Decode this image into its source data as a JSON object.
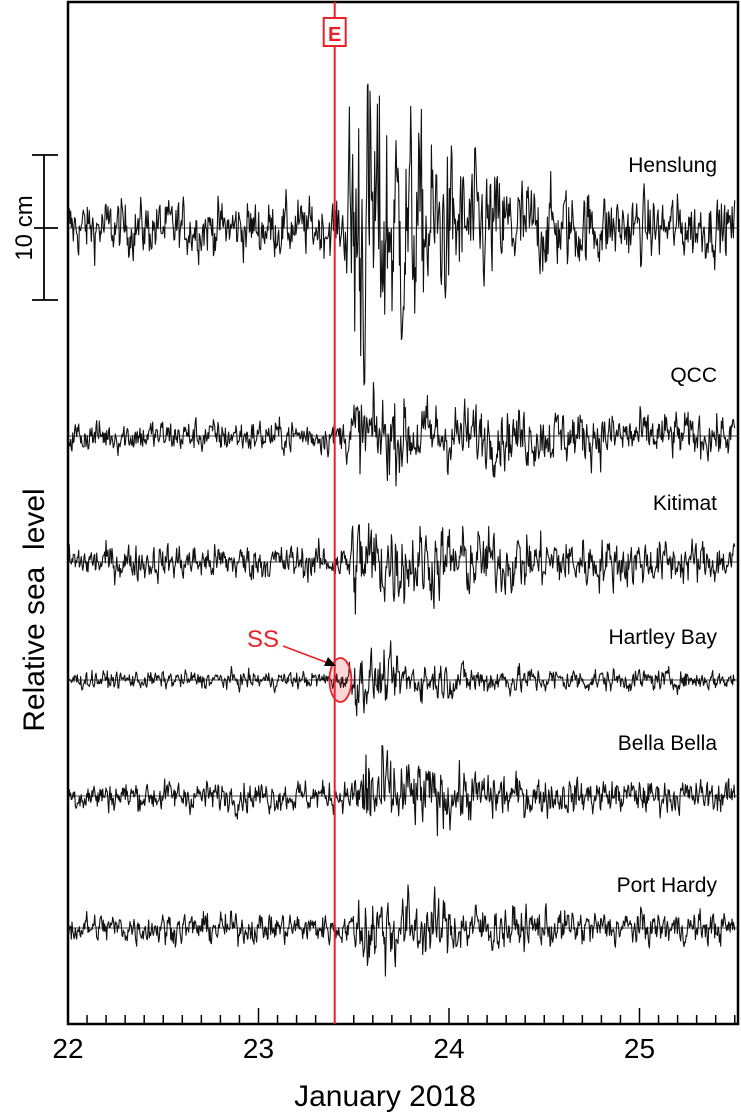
{
  "chart_data": {
    "type": "line",
    "xlabel": "January 2018",
    "ylabel": "Relative sea  level",
    "x_ticks": [
      "22",
      "23",
      "24",
      "25"
    ],
    "xlim": [
      22,
      25.5
    ],
    "scale_bar_label": "10 cm",
    "scale_bar_cm": 10,
    "event_marker": {
      "label": "E",
      "x": 23.4,
      "color": "#e8222a"
    },
    "annotation": {
      "label": "SS",
      "station": "Hartley Bay",
      "x": 23.43,
      "color": "#e8222a"
    },
    "series": [
      {
        "name": "Henslung",
        "noise_cm": 2.2,
        "burst_start": 23.45,
        "burst_peak_cm": 13.5,
        "burst_decay_days": 0.45
      },
      {
        "name": "QCC",
        "noise_cm": 1.3,
        "burst_start": 23.45,
        "burst_peak_cm": 2.2,
        "burst_decay_days": 1.2
      },
      {
        "name": "Kitimat",
        "noise_cm": 1.4,
        "burst_start": 23.45,
        "burst_peak_cm": 2.6,
        "burst_decay_days": 0.9
      },
      {
        "name": "Hartley Bay",
        "noise_cm": 0.7,
        "burst_start": 23.45,
        "burst_peak_cm": 1.8,
        "burst_decay_days": 0.6
      },
      {
        "name": "Bella Bella",
        "noise_cm": 1.2,
        "burst_start": 23.5,
        "burst_peak_cm": 3.3,
        "burst_decay_days": 0.45
      },
      {
        "name": "Port Hardy",
        "noise_cm": 1.2,
        "burst_start": 23.5,
        "burst_peak_cm": 2.8,
        "burst_decay_days": 0.5
      }
    ]
  }
}
